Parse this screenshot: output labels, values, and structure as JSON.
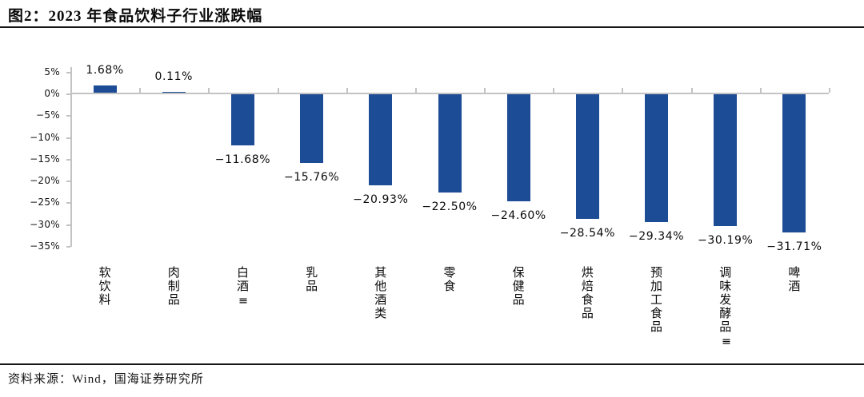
{
  "page": {
    "title": "图2：2023 年食品饮料子行业涨跌幅",
    "source": "资料来源：Wind，国海证券研究所"
  },
  "chart_data": {
    "type": "bar",
    "title": "2023 年食品饮料子行业涨跌幅",
    "categories": [
      "软饮料",
      "肉制品",
      "白酒Ⅲ",
      "乳品",
      "其他酒类",
      "零食",
      "保健品",
      "烘焙食品",
      "预加工食品",
      "调味发酵品Ⅲ",
      "啤酒"
    ],
    "values": [
      1.68,
      0.11,
      -11.68,
      -15.76,
      -20.93,
      -22.5,
      -24.6,
      -28.54,
      -29.34,
      -30.19,
      -31.71
    ],
    "value_labels": [
      "1.68%",
      "0.11%",
      "−11.68%",
      "−15.76%",
      "−20.93%",
      "−22.50%",
      "−24.60%",
      "−28.54%",
      "−29.34%",
      "−30.19%",
      "−31.71%"
    ],
    "xlabel": "",
    "ylabel": "",
    "ylim": [
      -35,
      5
    ],
    "ytick_step": 5,
    "ytick_labels": [
      "5%",
      "0%",
      "−5%",
      "−10%",
      "−15%",
      "−20%",
      "−25%",
      "−30%",
      "−35%"
    ],
    "bar_color": "#1D4C96",
    "axis_color": "#C3C3C3",
    "grid": false,
    "legend": false
  }
}
